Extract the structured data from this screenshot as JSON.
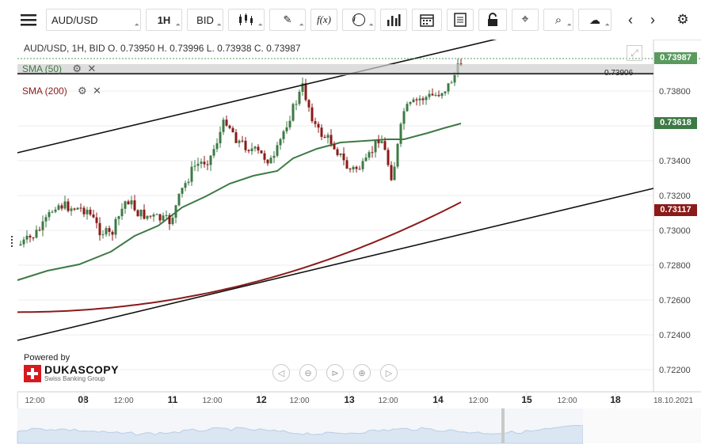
{
  "toolbar": {
    "symbol": "AUD/USD",
    "timeframe": "1H",
    "side": "BID",
    "function_label": "f(x)"
  },
  "chart": {
    "ohlc_label": "AUD/USD, 1H, BID   O. 0.73950 H. 0.73996 L. 0.73938 C. 0.73987",
    "indicators": [
      {
        "label": "SMA (50)",
        "color": "#3d7a45"
      },
      {
        "label": "SMA (200)",
        "color": "#8b1a1a"
      }
    ],
    "price_tags": {
      "last": "0.73987",
      "sma50": "0.73618",
      "sma200": "0.73117",
      "hline": "0.73906"
    },
    "price_axis": [
      "0.73800",
      "0.73600",
      "0.73400",
      "0.73200",
      "0.73000",
      "0.72800",
      "0.72600",
      "0.72400",
      "0.72200"
    ],
    "time_axis": [
      {
        "t": "12:00",
        "bold": false
      },
      {
        "t": "08",
        "bold": true
      },
      {
        "t": "12:00",
        "bold": false
      },
      {
        "t": "11",
        "bold": true
      },
      {
        "t": "12:00",
        "bold": false
      },
      {
        "t": "12",
        "bold": true
      },
      {
        "t": "12:00",
        "bold": false
      },
      {
        "t": "13",
        "bold": true
      },
      {
        "t": "12:00",
        "bold": false
      },
      {
        "t": "14",
        "bold": true
      },
      {
        "t": "12:00",
        "bold": false
      },
      {
        "t": "15",
        "bold": true
      },
      {
        "t": "12:00",
        "bold": false
      },
      {
        "t": "18",
        "bold": true
      },
      {
        "t": "18.10.2021",
        "bold": false
      }
    ],
    "powered_by": "Powered by",
    "brand": "DUKASCOPY",
    "brand_sub": "Swiss Banking Group",
    "colors": {
      "up": "#3d7a45",
      "down": "#8b1a1a",
      "accent_green": "#5a9a5e",
      "line": "#111"
    }
  }
}
